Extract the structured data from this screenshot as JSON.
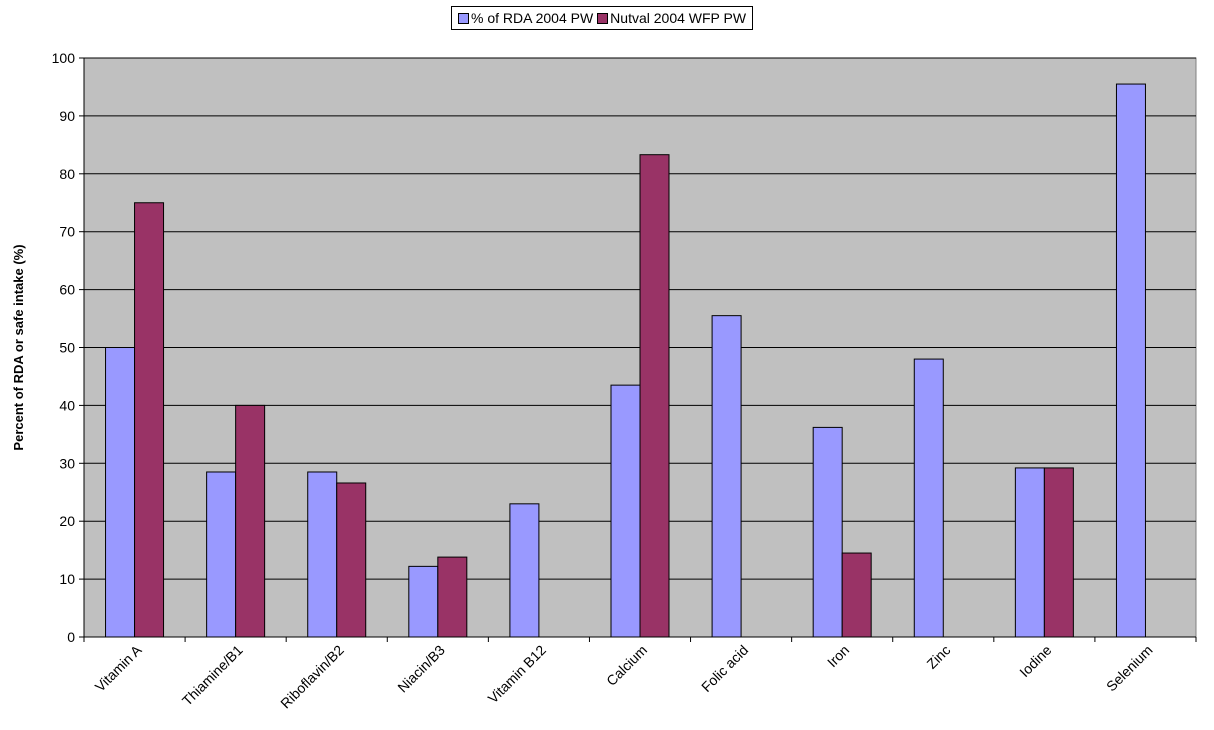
{
  "chart_data": {
    "type": "bar",
    "title": "",
    "xlabel": "",
    "ylabel": "Percent of RDA or safe intake (%)",
    "ylim": [
      0,
      100
    ],
    "yticks": [
      0,
      10,
      20,
      30,
      40,
      50,
      60,
      70,
      80,
      90,
      100
    ],
    "grid": true,
    "legend_position": "top-center",
    "categories": [
      "Vitamin A",
      "Thiamine/B1",
      "Riboflavin/B2",
      "Niacin/B3",
      "Vitamin B12",
      "Calcium",
      "Folic acid",
      "Iron",
      "Zinc",
      "Iodine",
      "Selenium"
    ],
    "series": [
      {
        "name": "% of RDA 2004 PW",
        "color": "#9999ff",
        "values": [
          50,
          28.5,
          28.5,
          12.2,
          23,
          43.5,
          55.5,
          36.2,
          48,
          29.2,
          95.5
        ]
      },
      {
        "name": "Nutval 2004 WFP PW",
        "color": "#993366",
        "values": [
          75,
          40,
          26.6,
          13.8,
          null,
          83.3,
          null,
          14.5,
          null,
          29.2,
          null
        ]
      }
    ],
    "plot_background": "#c0c0c0"
  }
}
